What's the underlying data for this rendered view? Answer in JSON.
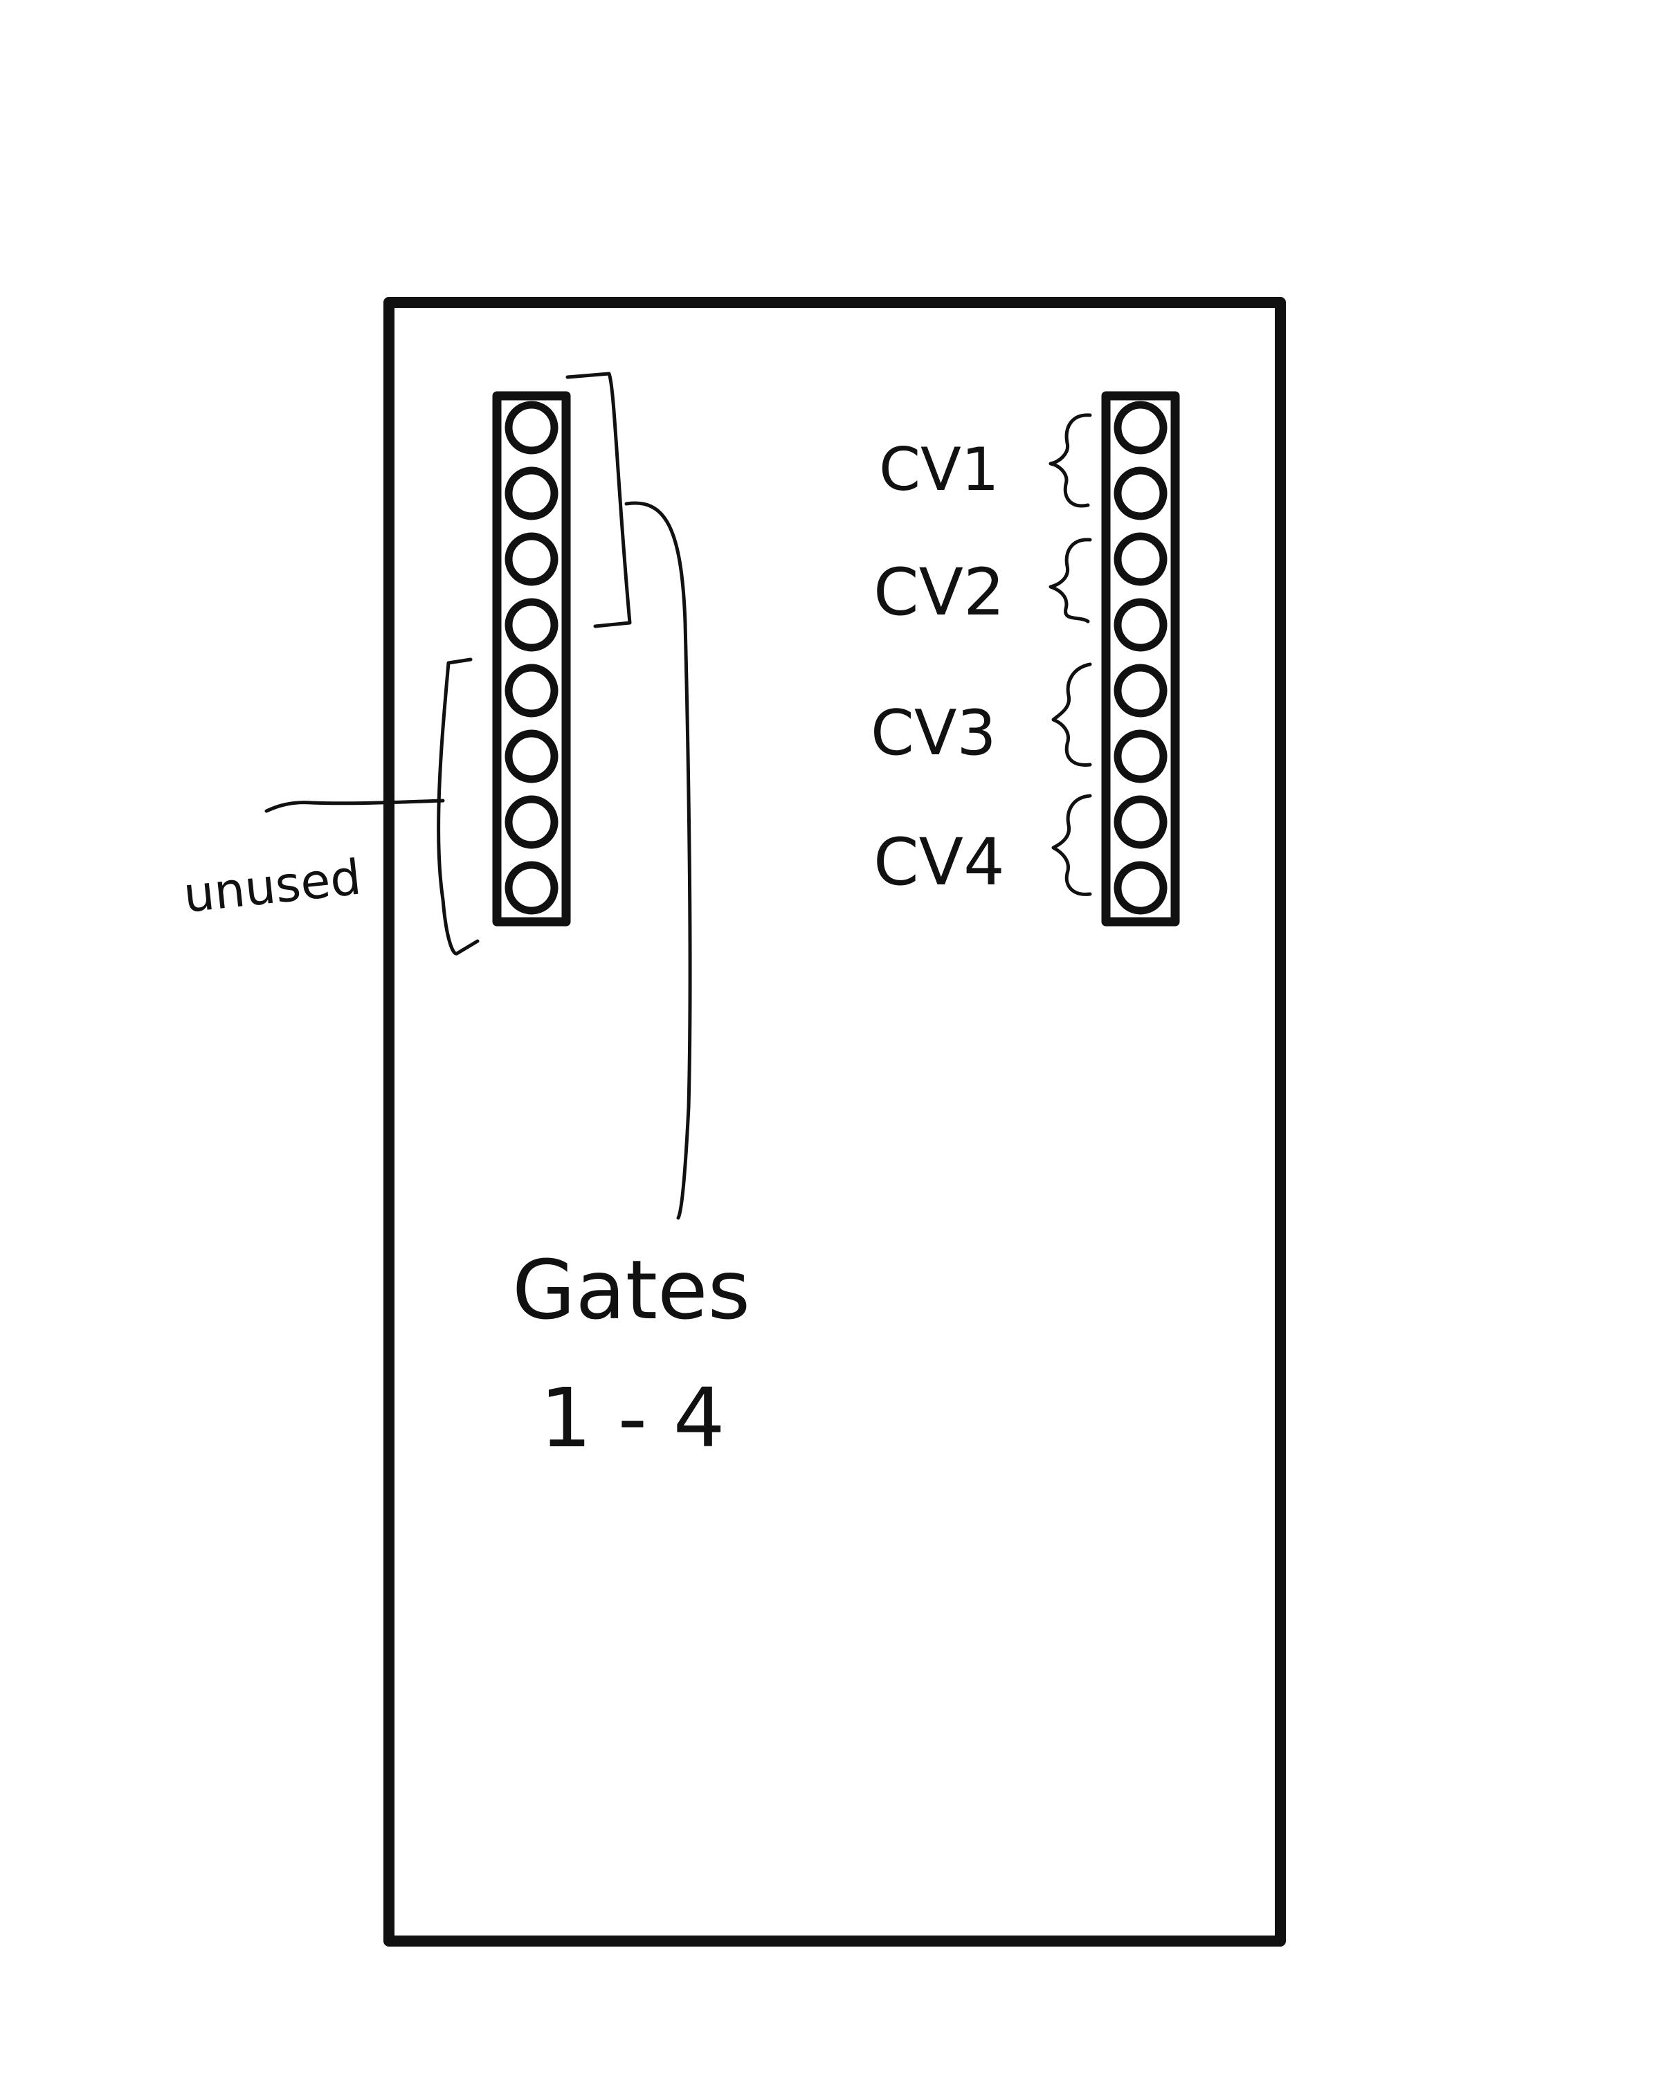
{
  "labels": {
    "unused": "unused",
    "gates_line1": "Gates",
    "gates_line2": "1 - 4",
    "cv1": "CV1",
    "cv2": "CV2",
    "cv3": "CV3",
    "cv4": "CV4"
  },
  "header_left": {
    "pins": 8
  },
  "header_right": {
    "pins": 8
  },
  "colors": {
    "ink": "#111111",
    "paper": "#ffffff"
  }
}
